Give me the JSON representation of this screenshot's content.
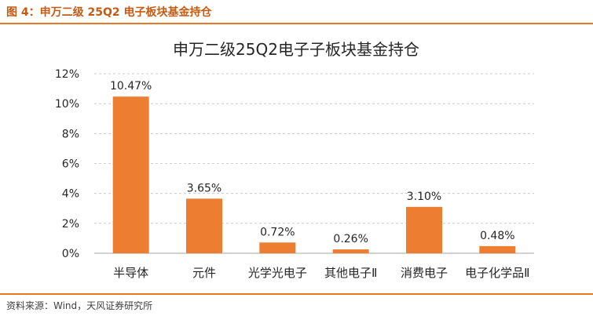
{
  "figure": {
    "title": "图 4：申万二级 25Q2 电子板块基金持仓",
    "source": "资料来源：Wind，天风证券研究所"
  },
  "colors": {
    "accent": "#e87722",
    "bar": "#ed7d31",
    "grid": "#bfbfbf",
    "text": "#262626"
  },
  "chart_data": {
    "type": "bar",
    "title": "申万二级25Q2电子子板块基金持仓",
    "categories": [
      "半导体",
      "元件",
      "光学光电子",
      "其他电子Ⅱ",
      "消费电子",
      "电子化学品Ⅱ"
    ],
    "values": [
      10.47,
      3.65,
      0.72,
      0.26,
      3.1,
      0.48
    ],
    "data_labels": [
      "10.47%",
      "3.65%",
      "0.72%",
      "0.26%",
      "3.10%",
      "0.48%"
    ],
    "xlabel": "",
    "ylabel": "",
    "ylim": [
      0,
      12
    ],
    "yticks": [
      0,
      2,
      4,
      6,
      8,
      10,
      12
    ],
    "ytick_labels": [
      "0%",
      "2%",
      "4%",
      "6%",
      "8%",
      "10%",
      "12%"
    ],
    "grid": true,
    "legend": "none"
  }
}
